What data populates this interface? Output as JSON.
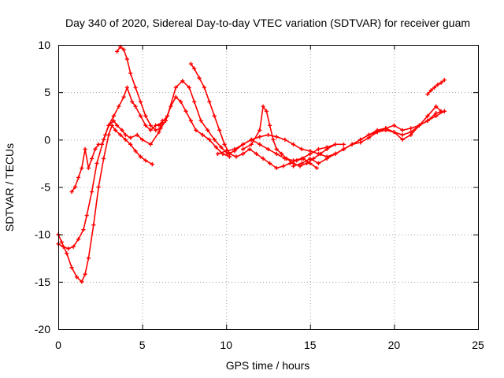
{
  "chart_data": {
    "type": "scatter",
    "title": "Day 340 of 2020, Sidereal Day-to-day VTEC variation (SDTVAR) for receiver guam",
    "xlabel": "GPS time / hours",
    "ylabel": "SDTVAR / TECUs",
    "xlim": [
      0,
      25
    ],
    "ylim": [
      -20,
      10
    ],
    "xticks": [
      "0",
      "5",
      "10",
      "15",
      "20",
      "25"
    ],
    "yticks": [
      "-20",
      "-15",
      "-10",
      "-5",
      "0",
      "5",
      "10"
    ],
    "grid": true,
    "marker": "plus",
    "color": "#ff0000",
    "series": [
      {
        "x": [
          0.0,
          0.3,
          0.6,
          0.9,
          1.2,
          1.5,
          1.7,
          2.0,
          2.3,
          2.7,
          3.0,
          3.3,
          3.5,
          3.8,
          4.0,
          4.3,
          4.7,
          5.0,
          5.5,
          6.0,
          6.2
        ],
        "y": [
          -11.0,
          -11.3,
          -11.5,
          -11.3,
          -10.5,
          -9.5,
          -8.0,
          -5.5,
          -2.5,
          0.0,
          1.5,
          2.0,
          1.5,
          1.0,
          0.5,
          0.2,
          0.5,
          0.0,
          -0.5,
          0.8,
          2.0
        ]
      },
      {
        "x": [
          0.0,
          0.2,
          0.5,
          0.8,
          1.1,
          1.4,
          1.6,
          1.8,
          2.1,
          2.4,
          2.7,
          3.0,
          3.2,
          3.4,
          3.7,
          4.0,
          4.3,
          4.6,
          4.9,
          5.2,
          5.6
        ],
        "y": [
          -10.0,
          -10.8,
          -12.0,
          -13.5,
          -14.5,
          -15.0,
          -14.2,
          -12.5,
          -9.0,
          -5.0,
          -2.0,
          0.5,
          1.5,
          1.0,
          0.5,
          0.0,
          -0.5,
          -1.2,
          -1.8,
          -2.2,
          -2.6
        ]
      },
      {
        "x": [
          0.8,
          1.0,
          1.2,
          1.4,
          1.6,
          1.8,
          2.0,
          2.2,
          2.4,
          2.6,
          2.8,
          3.0,
          3.3,
          3.6,
          3.9,
          4.1,
          4.4,
          4.6,
          4.9,
          5.2,
          5.5,
          5.8,
          6.2
        ],
        "y": [
          -5.5,
          -5.0,
          -4.0,
          -3.0,
          -1.0,
          -3.0,
          -2.0,
          -1.0,
          -0.5,
          -0.5,
          0.5,
          1.5,
          2.5,
          3.5,
          4.5,
          5.5,
          4.0,
          3.5,
          2.5,
          1.5,
          1.0,
          1.5,
          1.8
        ]
      },
      {
        "x": [
          3.5,
          3.7,
          3.9,
          4.1,
          4.3,
          4.6,
          4.9,
          5.2,
          5.5,
          5.8,
          6.1,
          6.4,
          6.7,
          7.0,
          7.3,
          7.6,
          7.9,
          8.2,
          8.6,
          9.0,
          9.4,
          9.8,
          10.2
        ],
        "y": [
          9.3,
          9.8,
          9.5,
          8.5,
          7.0,
          5.5,
          4.0,
          2.5,
          1.5,
          1.0,
          1.2,
          2.0,
          3.5,
          4.5,
          4.0,
          3.0,
          2.0,
          1.0,
          0.5,
          0.0,
          -0.8,
          -1.5,
          -1.8
        ]
      },
      {
        "x": [
          6.0,
          6.5,
          7.0,
          7.4,
          7.8,
          8.1,
          8.5,
          8.9,
          9.3,
          9.7,
          10.1,
          10.5,
          11.0,
          11.5,
          12.0,
          12.5,
          13.0,
          13.5,
          14.0,
          14.5,
          15.0,
          15.5,
          16.0,
          16.5,
          17.0
        ],
        "y": [
          1.5,
          2.5,
          5.5,
          6.2,
          5.5,
          4.0,
          2.0,
          1.0,
          0.0,
          -0.8,
          -1.5,
          -1.2,
          -0.5,
          0.0,
          -0.5,
          -1.0,
          -1.5,
          -2.0,
          -2.2,
          -2.0,
          -1.5,
          -1.0,
          -0.8,
          -0.5,
          -0.5
        ]
      },
      {
        "x": [
          7.9,
          8.1,
          8.4,
          8.7,
          9.0,
          9.3,
          9.6,
          9.9,
          10.2,
          10.6,
          11.0,
          11.4,
          11.8,
          12.2,
          12.6,
          13.0,
          13.4,
          13.8,
          14.2,
          14.6,
          15.0,
          15.4
        ],
        "y": [
          8.0,
          7.5,
          6.5,
          5.5,
          4.0,
          2.5,
          1.0,
          -0.5,
          -1.5,
          -1.8,
          -1.5,
          -1.0,
          -1.5,
          -2.0,
          -2.5,
          -3.0,
          -2.8,
          -2.5,
          -2.2,
          -2.0,
          -2.5,
          -3.0
        ]
      },
      {
        "x": [
          11.0,
          11.5,
          12.0,
          12.2,
          12.4,
          12.6,
          12.8,
          13.0,
          13.3,
          13.6,
          14.0,
          14.4,
          14.8,
          15.2,
          15.6,
          16.0,
          16.5
        ],
        "y": [
          -1.0,
          -0.5,
          1.0,
          3.5,
          3.0,
          1.5,
          0.0,
          -1.0,
          -1.5,
          -2.0,
          -2.5,
          -2.8,
          -2.5,
          -2.0,
          -1.5,
          -1.0,
          -0.5
        ]
      },
      {
        "x": [
          9.5,
          10.0,
          10.5,
          11.0,
          11.5,
          12.0,
          12.5,
          13.0,
          13.5,
          14.0,
          14.5,
          15.0,
          15.5,
          16.0,
          16.5,
          17.0,
          17.5,
          18.0,
          18.5,
          19.0,
          19.5,
          20.0,
          20.5,
          21.0,
          21.5,
          22.0,
          22.5,
          23.0
        ],
        "y": [
          -1.5,
          -1.2,
          -1.0,
          -0.5,
          0.0,
          0.3,
          0.5,
          0.3,
          0.0,
          -0.5,
          -1.0,
          -1.2,
          -1.5,
          -1.8,
          -1.5,
          -1.0,
          -0.5,
          0.0,
          0.5,
          0.8,
          1.0,
          0.8,
          0.5,
          0.8,
          1.5,
          2.0,
          2.5,
          3.0
        ]
      },
      {
        "x": [
          14.0,
          14.5,
          15.0,
          15.5,
          16.0,
          16.5,
          17.0,
          17.5,
          18.0,
          18.5,
          19.0,
          19.5,
          20.0,
          20.5,
          21.0,
          21.5,
          22.0,
          22.5,
          23.0
        ],
        "y": [
          -2.8,
          -2.5,
          -2.0,
          -2.5,
          -2.0,
          -1.5,
          -1.0,
          -0.5,
          0.0,
          0.5,
          1.0,
          1.2,
          0.8,
          0.0,
          0.5,
          1.5,
          2.0,
          2.8,
          3.0
        ]
      },
      {
        "x": [
          16.5,
          17.0,
          17.5,
          18.0,
          18.5,
          19.0,
          19.5,
          20.0,
          20.5,
          21.0,
          21.5,
          22.0,
          22.5,
          22.8
        ],
        "y": [
          -1.5,
          -1.0,
          -0.5,
          -0.3,
          0.2,
          0.8,
          1.2,
          1.5,
          1.0,
          1.2,
          1.5,
          2.5,
          3.5,
          3.0
        ]
      },
      {
        "x": [
          22.0,
          22.2,
          22.4,
          22.6,
          22.8,
          23.0
        ],
        "y": [
          4.8,
          5.2,
          5.5,
          5.8,
          6.0,
          6.3
        ]
      }
    ]
  }
}
